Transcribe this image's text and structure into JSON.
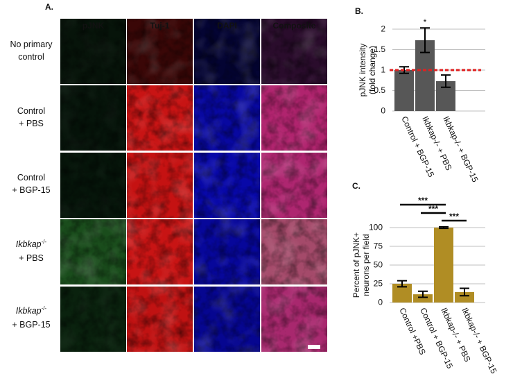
{
  "panel_a": {
    "label": "A.",
    "columns": [
      {
        "name": "pJNK",
        "color": "#22c022"
      },
      {
        "name": "Tuj-1",
        "color": "#ff2020"
      },
      {
        "name": "DAPI",
        "color": "#4a6cff"
      },
      {
        "name": "Composite",
        "color": "#ffffff"
      }
    ],
    "rows": [
      {
        "line1": "No primary",
        "line2": "control"
      },
      {
        "line1": "Control",
        "line2": "+ PBS"
      },
      {
        "line1": "Control",
        "line2": "+ BGP-15"
      },
      {
        "gene": "Ikbkap",
        "genotype": "-/-",
        "treatment": "+ PBS"
      },
      {
        "gene": "Ikbkap",
        "genotype": "-/-",
        "treatment": "+ BGP-15"
      }
    ]
  },
  "chart_data": [
    {
      "type": "bar",
      "panel_label": "B.",
      "ylabel": [
        "pJNK intensity",
        "(fold change)"
      ],
      "categories": [
        "Control + BGP-15",
        "Ikbkap-/- + PBS",
        "Ikbkap-/- + BGP-15"
      ],
      "values": [
        1.0,
        1.73,
        0.73
      ],
      "errors": [
        0.08,
        0.3,
        0.15
      ],
      "color": "#575757",
      "annotations": [
        "",
        "*",
        ""
      ],
      "reference_line": 1,
      "reference_color": "#e02020",
      "ylim": [
        0,
        2
      ],
      "yticks": [
        0,
        0.5,
        1,
        1.5,
        2
      ],
      "grid": true
    },
    {
      "type": "bar",
      "panel_label": "C.",
      "ylabel": [
        "Percent of pJNK+",
        "neurons per field"
      ],
      "categories": [
        "Control +PBS",
        "Control + BGP-15",
        "Ikbkap-/- + PBS",
        "Ikbkap-/- + BGP-15"
      ],
      "values": [
        25,
        11,
        100,
        14
      ],
      "errors": [
        4,
        4,
        1,
        5
      ],
      "color": "#b08d24",
      "significance": [
        "***",
        "***",
        "***"
      ],
      "ylim": [
        0,
        100
      ],
      "yticks": [
        0,
        25,
        50,
        75,
        100
      ],
      "grid": true
    }
  ]
}
